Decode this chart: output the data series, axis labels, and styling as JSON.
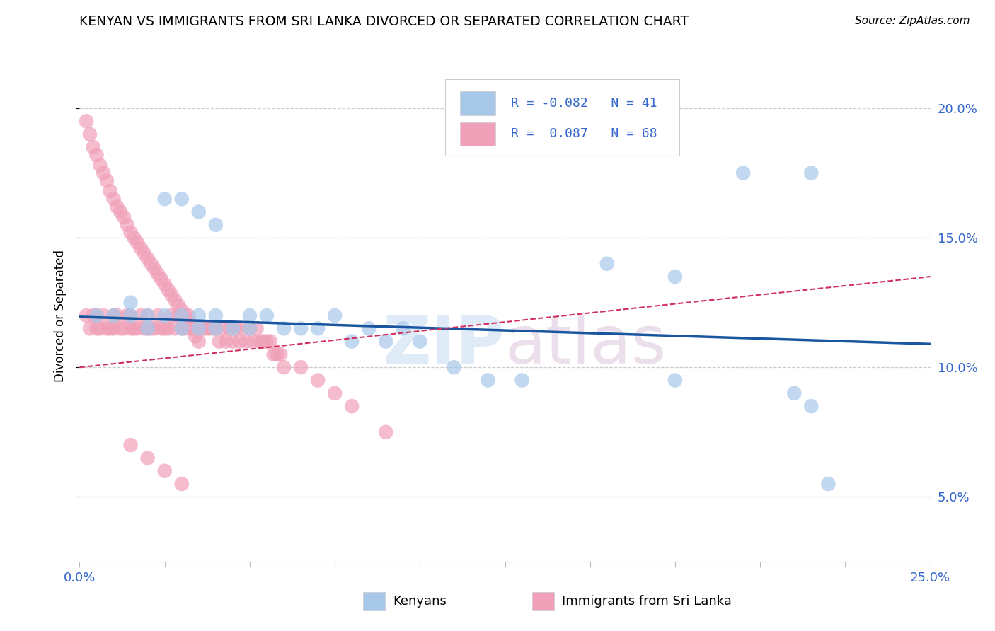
{
  "title": "KENYAN VS IMMIGRANTS FROM SRI LANKA DIVORCED OR SEPARATED CORRELATION CHART",
  "source": "Source: ZipAtlas.com",
  "ylabel": "Divorced or Separated",
  "xlim": [
    0.0,
    0.25
  ],
  "ylim": [
    0.025,
    0.215
  ],
  "xtick_positions": [
    0.0,
    0.025,
    0.05,
    0.075,
    0.1,
    0.125,
    0.15,
    0.175,
    0.2,
    0.225,
    0.25
  ],
  "xtick_labels_shown": {
    "0.0": "0.0%",
    "0.25": "25.0%"
  },
  "yticks": [
    0.05,
    0.1,
    0.15,
    0.2
  ],
  "ytick_labels": [
    "5.0%",
    "10.0%",
    "15.0%",
    "20.0%"
  ],
  "legend_blue_r": "-0.082",
  "legend_blue_n": "41",
  "legend_pink_r": "0.087",
  "legend_pink_n": "68",
  "blue_color": "#A8C8EA",
  "pink_color": "#F0A0B8",
  "blue_line_color": "#1A55A0",
  "pink_line_color": "#D03060",
  "watermark_zip": "ZIP",
  "watermark_atlas": "atlas",
  "blue_trend_x": [
    0.0,
    0.25
  ],
  "blue_trend_y": [
    0.1195,
    0.109
  ],
  "pink_trend_x": [
    0.0,
    0.25
  ],
  "pink_trend_y": [
    0.1,
    0.135
  ],
  "blue_scatter_x": [
    0.005,
    0.01,
    0.015,
    0.015,
    0.02,
    0.02,
    0.025,
    0.03,
    0.03,
    0.035,
    0.035,
    0.04,
    0.04,
    0.045,
    0.05,
    0.05,
    0.055,
    0.06,
    0.065,
    0.07,
    0.075,
    0.08,
    0.085,
    0.09,
    0.095,
    0.1,
    0.11,
    0.12,
    0.13,
    0.155,
    0.175,
    0.195,
    0.215,
    0.22,
    0.025,
    0.03,
    0.035,
    0.04,
    0.175,
    0.21,
    0.215
  ],
  "blue_scatter_y": [
    0.12,
    0.12,
    0.125,
    0.12,
    0.12,
    0.115,
    0.12,
    0.12,
    0.115,
    0.115,
    0.12,
    0.115,
    0.12,
    0.115,
    0.12,
    0.115,
    0.12,
    0.115,
    0.115,
    0.115,
    0.12,
    0.11,
    0.115,
    0.11,
    0.115,
    0.11,
    0.1,
    0.095,
    0.095,
    0.14,
    0.135,
    0.175,
    0.175,
    0.055,
    0.165,
    0.165,
    0.16,
    0.155,
    0.095,
    0.09,
    0.085
  ],
  "pink_scatter_x": [
    0.002,
    0.003,
    0.004,
    0.005,
    0.005,
    0.006,
    0.007,
    0.008,
    0.009,
    0.01,
    0.01,
    0.011,
    0.012,
    0.013,
    0.014,
    0.015,
    0.015,
    0.016,
    0.017,
    0.018,
    0.019,
    0.02,
    0.02,
    0.021,
    0.022,
    0.023,
    0.024,
    0.025,
    0.026,
    0.027,
    0.028,
    0.029,
    0.03,
    0.031,
    0.032,
    0.033,
    0.034,
    0.035,
    0.036,
    0.037,
    0.038,
    0.039,
    0.04,
    0.041,
    0.042,
    0.043,
    0.044,
    0.045,
    0.046,
    0.047,
    0.048,
    0.049,
    0.05,
    0.051,
    0.052,
    0.053,
    0.054,
    0.055,
    0.056,
    0.057,
    0.058,
    0.059,
    0.06,
    0.065,
    0.07,
    0.075,
    0.08,
    0.09
  ],
  "pink_scatter_y": [
    0.12,
    0.115,
    0.12,
    0.115,
    0.12,
    0.115,
    0.12,
    0.115,
    0.115,
    0.12,
    0.115,
    0.12,
    0.115,
    0.115,
    0.12,
    0.115,
    0.12,
    0.115,
    0.115,
    0.12,
    0.115,
    0.115,
    0.12,
    0.115,
    0.115,
    0.12,
    0.115,
    0.115,
    0.115,
    0.12,
    0.115,
    0.12,
    0.115,
    0.115,
    0.12,
    0.115,
    0.115,
    0.115,
    0.115,
    0.115,
    0.115,
    0.115,
    0.115,
    0.11,
    0.115,
    0.11,
    0.115,
    0.11,
    0.115,
    0.11,
    0.115,
    0.11,
    0.115,
    0.11,
    0.115,
    0.11,
    0.11,
    0.11,
    0.11,
    0.105,
    0.105,
    0.105,
    0.1,
    0.1,
    0.095,
    0.09,
    0.085,
    0.075
  ],
  "pink_extra_x": [
    0.002,
    0.003,
    0.004,
    0.005,
    0.006,
    0.007,
    0.008,
    0.009,
    0.01,
    0.011,
    0.012,
    0.013,
    0.014,
    0.015,
    0.016,
    0.017,
    0.018,
    0.019,
    0.02,
    0.021,
    0.022,
    0.023,
    0.024,
    0.025,
    0.026,
    0.027,
    0.028,
    0.029,
    0.03,
    0.031,
    0.032,
    0.033,
    0.034,
    0.035,
    0.015,
    0.02,
    0.025,
    0.03
  ],
  "pink_extra_y": [
    0.195,
    0.19,
    0.185,
    0.182,
    0.178,
    0.175,
    0.172,
    0.168,
    0.165,
    0.162,
    0.16,
    0.158,
    0.155,
    0.152,
    0.15,
    0.148,
    0.146,
    0.144,
    0.142,
    0.14,
    0.138,
    0.136,
    0.134,
    0.132,
    0.13,
    0.128,
    0.126,
    0.124,
    0.122,
    0.12,
    0.118,
    0.115,
    0.112,
    0.11,
    0.07,
    0.065,
    0.06,
    0.055
  ]
}
